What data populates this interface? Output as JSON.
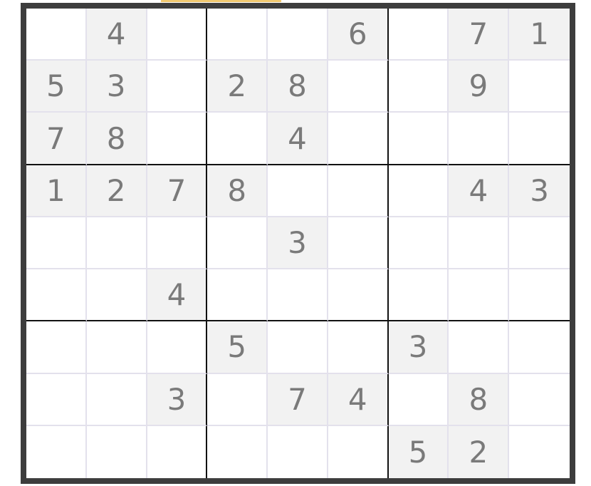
{
  "puzzle": {
    "grid": [
      [
        "",
        "4",
        "",
        "",
        "",
        "6",
        "",
        "7",
        "1"
      ],
      [
        "5",
        "3",
        "",
        "2",
        "8",
        "",
        "",
        "9",
        ""
      ],
      [
        "7",
        "8",
        "",
        "",
        "4",
        "",
        "",
        "",
        ""
      ],
      [
        "1",
        "2",
        "7",
        "8",
        "",
        "",
        "",
        "4",
        "3"
      ],
      [
        "",
        "",
        "",
        "",
        "3",
        "",
        "",
        "",
        ""
      ],
      [
        "",
        "",
        "4",
        "",
        "",
        "",
        "",
        "",
        ""
      ],
      [
        "",
        "",
        "",
        "5",
        "",
        "",
        "3",
        "",
        ""
      ],
      [
        "",
        "",
        "3",
        "",
        "7",
        "4",
        "",
        "8",
        ""
      ],
      [
        "",
        "",
        "",
        "",
        "",
        "",
        "5",
        "2",
        ""
      ]
    ]
  },
  "colors": {
    "given_bg": "#f2f2f2",
    "border": "#3d3d3d",
    "box_line": "#111111",
    "cell_line": "#e3e1ec",
    "digit": "#7a7a7a",
    "top_accent": "#f0c870"
  }
}
